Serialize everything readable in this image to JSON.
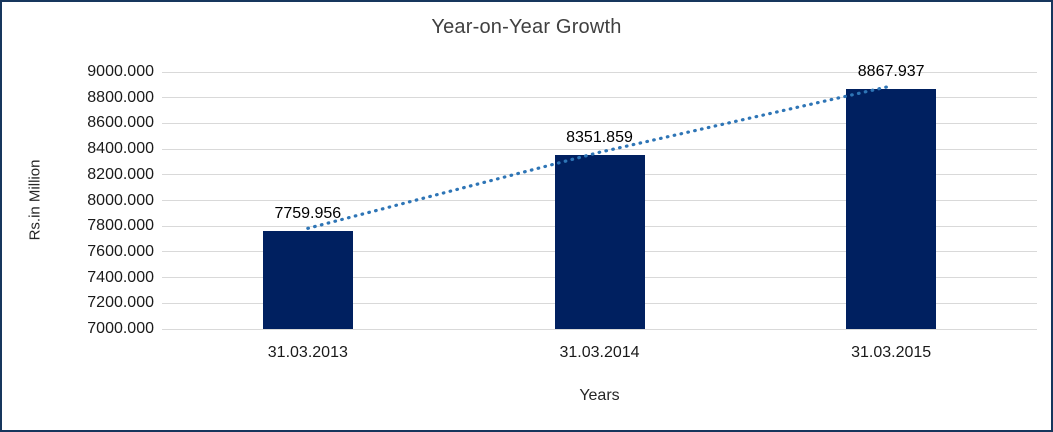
{
  "chart_data": {
    "type": "bar",
    "title": "Year-on-Year Growth",
    "categories": [
      "31.03.2013",
      "31.03.2014",
      "31.03.2015"
    ],
    "values": [
      7759.956,
      8351.859,
      8867.937
    ],
    "data_labels": [
      "7759.956",
      "8351.859",
      "8867.937"
    ],
    "xlabel": "Years",
    "ylabel": "Rs.in Million",
    "ylim": [
      7000,
      9000
    ],
    "ytick_step": 200,
    "ytick_labels": [
      "7000.000",
      "7200.000",
      "7400.000",
      "7600.000",
      "7800.000",
      "8000.000",
      "8200.000",
      "8400.000",
      "8600.000",
      "8800.000",
      "9000.000"
    ],
    "grid": true,
    "legend": "none",
    "bar_color": "#002060",
    "gridline_color": "#D9D9D9",
    "frame_color": "#17365D",
    "title_color": "#404040",
    "trendline": {
      "type": "linear",
      "style": "dotted",
      "color": "#2E75B6"
    }
  }
}
